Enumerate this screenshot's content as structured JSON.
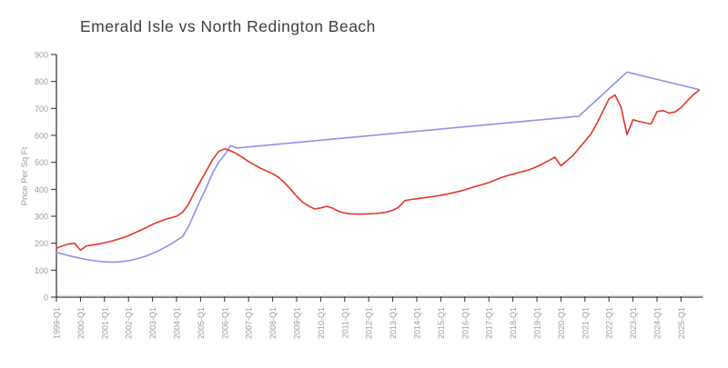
{
  "chart_data": {
    "type": "line",
    "title": "Emerald Isle vs North Redington Beach",
    "xlabel": "",
    "ylabel": "Price Per Sq Ft",
    "ylim": [
      0,
      900
    ],
    "xlim": [
      1999.0,
      2025.92
    ],
    "grid": false,
    "legend_position": "none",
    "y_ticks": [
      0,
      100,
      200,
      300,
      400,
      500,
      600,
      700,
      800,
      900
    ],
    "x_tick_labels": [
      "1999-Q1",
      "2000-Q1",
      "2001-Q1",
      "2002-Q1",
      "2003-Q1",
      "2004-Q1",
      "2005-Q1",
      "2006-Q1",
      "2007-Q1",
      "2008-Q1",
      "2009-Q1",
      "2010-Q1",
      "2011-Q1",
      "2012-Q1",
      "2013-Q1",
      "2014-Q1",
      "2015-Q1",
      "2016-Q1",
      "2017-Q1",
      "2018-Q1",
      "2019-Q1",
      "2020-Q1",
      "2021-Q1",
      "2022-Q1",
      "2023-Q1",
      "2024-Q1",
      "2025-Q1"
    ],
    "colors": {
      "emerald_isle_line": "#8f92e8",
      "north_redington_beach_line": "#e5352b",
      "tick_labels": "#9a9a9a",
      "title_text": "#3d3d3d",
      "axis": "#2b2b2b",
      "minor_ticks": "#c6c6c6"
    },
    "series": [
      {
        "id": "emerald-isle",
        "name": "Emerald Isle",
        "color": "#8f92e8",
        "points": [
          [
            1999.0,
            166
          ],
          [
            1999.25,
            160
          ],
          [
            1999.5,
            154
          ],
          [
            1999.75,
            149
          ],
          [
            2000.0,
            144
          ],
          [
            2000.25,
            140
          ],
          [
            2000.5,
            136
          ],
          [
            2000.75,
            133
          ],
          [
            2001.0,
            131
          ],
          [
            2001.25,
            130
          ],
          [
            2001.5,
            130
          ],
          [
            2001.75,
            132
          ],
          [
            2002.0,
            135
          ],
          [
            2002.25,
            140
          ],
          [
            2002.5,
            146
          ],
          [
            2002.75,
            153
          ],
          [
            2003.0,
            162
          ],
          [
            2003.25,
            172
          ],
          [
            2003.5,
            184
          ],
          [
            2003.75,
            196
          ],
          [
            2004.0,
            210
          ],
          [
            2004.25,
            224
          ],
          [
            2004.5,
            262
          ],
          [
            2004.75,
            312
          ],
          [
            2005.0,
            362
          ],
          [
            2005.25,
            408
          ],
          [
            2005.5,
            460
          ],
          [
            2005.75,
            500
          ],
          [
            2006.0,
            528
          ],
          [
            2006.25,
            562
          ],
          [
            2006.5,
            553
          ],
          [
            2020.75,
            671
          ],
          [
            2022.75,
            835
          ],
          [
            2025.75,
            770
          ]
        ]
      },
      {
        "id": "north-redington-beach",
        "name": "North Redington Beach",
        "color": "#e5352b",
        "start": 1999.0,
        "step": 0.25,
        "values": [
          181,
          190,
          197,
          200,
          174,
          190,
          193,
          197,
          202,
          207,
          213,
          220,
          228,
          238,
          248,
          258,
          270,
          279,
          288,
          294,
          300,
          315,
          345,
          390,
          430,
          470,
          510,
          540,
          550,
          543,
          532,
          518,
          503,
          490,
          478,
          468,
          458,
          444,
          424,
          400,
          374,
          352,
          338,
          327,
          331,
          337,
          330,
          318,
          312,
          309,
          308,
          308,
          309,
          310,
          312,
          316,
          322,
          334,
          358,
          362,
          365,
          368,
          371,
          374,
          378,
          382,
          387,
          392,
          398,
          405,
          412,
          418,
          425,
          434,
          443,
          450,
          456,
          462,
          468,
          475,
          484,
          495,
          507,
          519,
          487,
          506,
          525,
          552,
          578,
          605,
          645,
          690,
          735,
          750,
          705,
          603,
          658,
          652,
          647,
          642,
          688,
          692,
          683,
          687,
          703,
          727,
          750,
          768
        ]
      }
    ]
  }
}
